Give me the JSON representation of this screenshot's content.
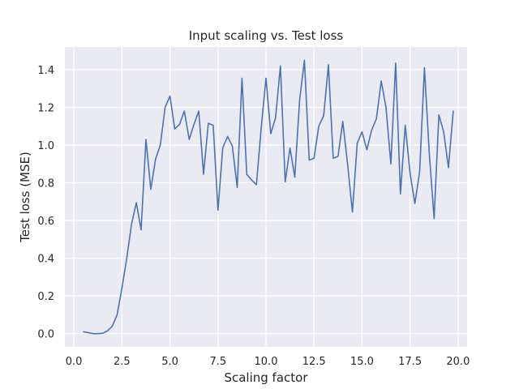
{
  "chart_data": {
    "type": "line",
    "title": "Input scaling vs. Test loss",
    "xlabel": "Scaling factor",
    "ylabel": "Test loss (MSE)",
    "xlim": [
      -0.47,
      20.47
    ],
    "ylim": [
      -0.07,
      1.52
    ],
    "x_ticks": [
      0.0,
      2.5,
      5.0,
      7.5,
      10.0,
      12.5,
      15.0,
      17.5,
      20.0
    ],
    "x_tick_labels": [
      "0.0",
      "2.5",
      "5.0",
      "7.5",
      "10.0",
      "12.5",
      "15.0",
      "17.5",
      "20.0"
    ],
    "y_ticks": [
      0.0,
      0.2,
      0.4,
      0.6,
      0.8,
      1.0,
      1.2,
      1.4
    ],
    "y_tick_labels": [
      "0.0",
      "0.2",
      "0.4",
      "0.6",
      "0.8",
      "1.0",
      "1.2",
      "1.4"
    ],
    "grid": true,
    "style": "seaborn-darkgrid",
    "colors": {
      "line": "#4c72b0",
      "plot_bg": "#eaeaf2",
      "grid": "#ffffff"
    },
    "series": [
      {
        "x": [
          0.5,
          0.75,
          1.0,
          1.25,
          1.5,
          1.75,
          2.0,
          2.25,
          2.5,
          2.75,
          3.0,
          3.25,
          3.5,
          3.75,
          4.0,
          4.25,
          4.5,
          4.75,
          5.0,
          5.25,
          5.5,
          5.75,
          6.0,
          6.25,
          6.5,
          6.75,
          7.0,
          7.25,
          7.5,
          7.75,
          8.0,
          8.25,
          8.5,
          8.75,
          9.0,
          9.25,
          9.5,
          9.75,
          10.0,
          10.25,
          10.5,
          10.75,
          11.0,
          11.25,
          11.5,
          11.75,
          12.0,
          12.25,
          12.5,
          12.75,
          13.0,
          13.25,
          13.5,
          13.75,
          14.0,
          14.25,
          14.5,
          14.75,
          15.0,
          15.25,
          15.5,
          15.75,
          16.0,
          16.25,
          16.5,
          16.75,
          17.0,
          17.25,
          17.5,
          17.75,
          18.0,
          18.25,
          18.5,
          18.75,
          19.0,
          19.25,
          19.5,
          19.75
        ],
        "y": [
          0.01,
          0.005,
          0.0,
          0.0,
          0.002,
          0.015,
          0.04,
          0.1,
          0.24,
          0.4,
          0.58,
          0.695,
          0.55,
          1.03,
          0.765,
          0.925,
          1.0,
          1.2,
          1.26,
          1.085,
          1.11,
          1.18,
          1.03,
          1.11,
          1.18,
          0.845,
          1.115,
          1.105,
          0.655,
          0.985,
          1.045,
          0.995,
          0.775,
          1.355,
          0.845,
          0.815,
          0.79,
          1.09,
          1.355,
          1.06,
          1.145,
          1.42,
          0.805,
          0.985,
          0.83,
          1.24,
          1.45,
          0.92,
          0.93,
          1.1,
          1.155,
          1.425,
          0.93,
          0.94,
          1.125,
          0.895,
          0.645,
          1.01,
          1.07,
          0.975,
          1.08,
          1.14,
          1.34,
          1.2,
          0.9,
          1.435,
          0.74,
          1.105,
          0.85,
          0.69,
          0.86,
          1.41,
          0.96,
          0.61,
          1.16,
          1.07,
          0.88,
          1.18
        ]
      }
    ]
  }
}
